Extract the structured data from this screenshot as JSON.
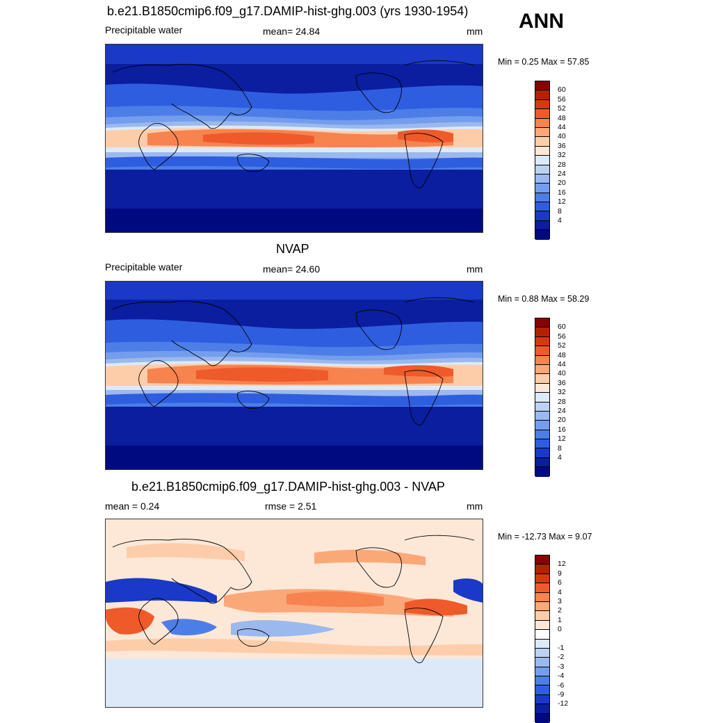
{
  "season": "ANN",
  "panels": [
    {
      "title": "b.e21.B1850cmip6.f09_g17.DAMIP-hist-ghg.003 (yrs 1930-1954)",
      "left_label": "Precipitable water",
      "center_label": "mean=  24.84",
      "units": "mm",
      "minmax": "Min =   0.25 Max =  57.85",
      "colorbar": {
        "colors": [
          "#8b0000",
          "#b22200",
          "#d43a0f",
          "#ef5a2a",
          "#f7834f",
          "#fba878",
          "#fdcdaa",
          "#fde8d8",
          "#dde9f9",
          "#bcd2f3",
          "#9bb9ef",
          "#749ded",
          "#4d7ee8",
          "#2f5de0",
          "#1939c6",
          "#0a1e9f",
          "#000a80"
        ],
        "labels": [
          "60",
          "56",
          "52",
          "48",
          "44",
          "40",
          "36",
          "32",
          "28",
          "24",
          "20",
          "16",
          "12",
          "8",
          "4"
        ]
      }
    },
    {
      "title": "NVAP",
      "left_label": "Precipitable water",
      "center_label": "mean=  24.60",
      "units": "mm",
      "minmax": "Min =   0.88 Max =  58.29",
      "colorbar": {
        "colors": [
          "#8b0000",
          "#b22200",
          "#d43a0f",
          "#ef5a2a",
          "#f7834f",
          "#fba878",
          "#fdcdaa",
          "#fde8d8",
          "#dde9f9",
          "#bcd2f3",
          "#9bb9ef",
          "#749ded",
          "#4d7ee8",
          "#2f5de0",
          "#1939c6",
          "#0a1e9f",
          "#000a80"
        ],
        "labels": [
          "60",
          "56",
          "52",
          "48",
          "44",
          "40",
          "36",
          "32",
          "28",
          "24",
          "20",
          "16",
          "12",
          "8",
          "4"
        ]
      }
    },
    {
      "title": "b.e21.B1850cmip6.f09_g17.DAMIP-hist-ghg.003 - NVAP",
      "left_label": "mean =   0.24",
      "center_label": "rmse =   2.51",
      "units": "mm",
      "minmax": "Min = -12.73 Max =   9.07",
      "colorbar": {
        "colors": [
          "#8b0000",
          "#b22200",
          "#d43a0f",
          "#ef5a2a",
          "#f7834f",
          "#fba878",
          "#fdcdaa",
          "#fde8d8",
          "#ffffff",
          "#dde9f9",
          "#bcd2f3",
          "#9bb9ef",
          "#749ded",
          "#4d7ee8",
          "#2f5de0",
          "#1939c6",
          "#0a1e9f",
          "#000a80"
        ],
        "labels": [
          "12",
          "9",
          "6",
          "4",
          "3",
          "2",
          "1",
          "0",
          "-1",
          "-2",
          "-3",
          "-4",
          "-6",
          "-9",
          "-12"
        ]
      }
    }
  ]
}
